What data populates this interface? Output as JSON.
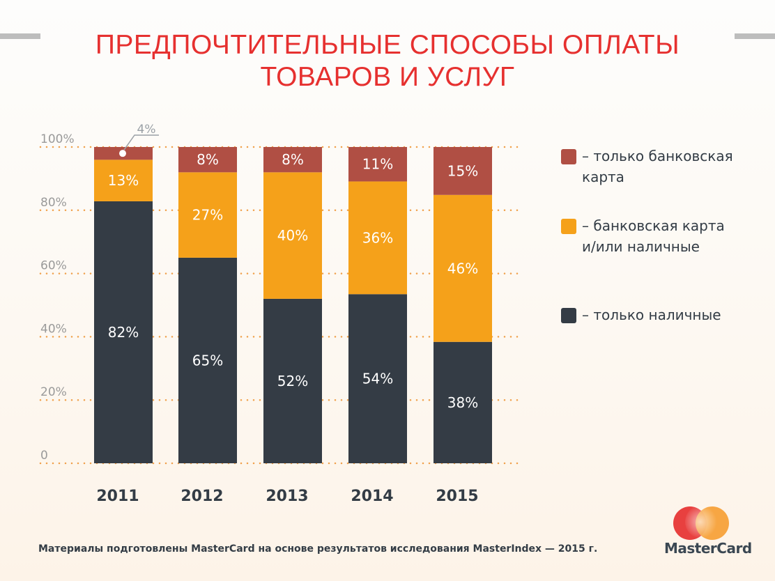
{
  "title_lines": [
    "ПРЕДПОЧТИТЕЛЬНЫЕ СПОСОБЫ ОПЛАТЫ",
    "ТОВАРОВ И УСЛУГ"
  ],
  "chart_data": {
    "type": "bar",
    "stacked": true,
    "categories": [
      "2011",
      "2012",
      "2013",
      "2014",
      "2015"
    ],
    "series": [
      {
        "name": "– только наличные",
        "color": "#343c45",
        "values": [
          82,
          65,
          52,
          54,
          38
        ]
      },
      {
        "name": "– банковская карта\nи/или наличные",
        "color": "#f5a11a",
        "values": [
          13,
          27,
          40,
          36,
          46
        ]
      },
      {
        "name": "– только банковская\nкарта",
        "color": "#b04f44",
        "values": [
          4,
          8,
          8,
          11,
          15
        ]
      }
    ],
    "ylim": [
      0,
      100
    ],
    "yticks": [
      0,
      20,
      40,
      60,
      80,
      100
    ],
    "ytick_labels": [
      "0",
      "20%",
      "40%",
      "60%",
      "80%",
      "100%"
    ],
    "grid": "dotted horizontal",
    "gridline_color": "#f0a04a",
    "legend_placement": "right",
    "callout": {
      "category": "2011",
      "series": "– только банковская\nкарта",
      "label": "4%"
    }
  },
  "footer": "Материалы подготовлены MasterCard на основе результатов исследования MasterIndex — 2015 г.",
  "logo": {
    "text": "MasterCard",
    "colors": [
      "#e8403f",
      "#f7a13a"
    ]
  }
}
